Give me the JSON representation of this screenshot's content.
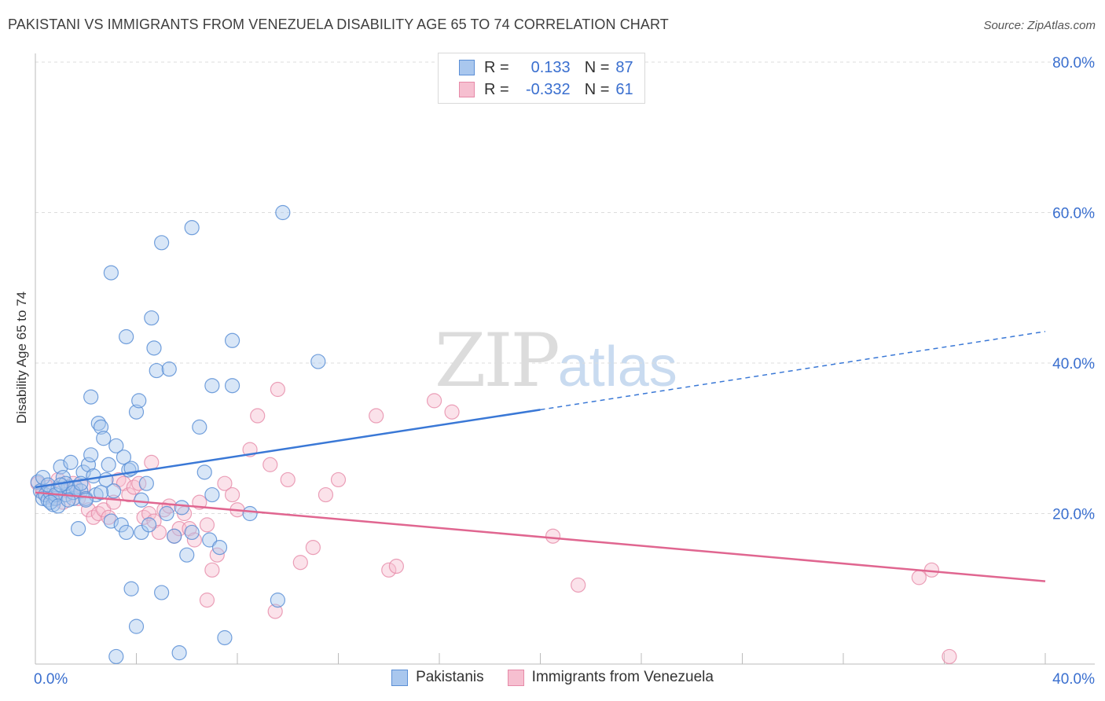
{
  "header": {
    "title": "PAKISTANI VS IMMIGRANTS FROM VENEZUELA DISABILITY AGE 65 TO 74 CORRELATION CHART",
    "source": "Source: ZipAtlas.com"
  },
  "legend": {
    "rows": [
      {
        "r_label": "R =",
        "r_value": "0.133",
        "n_label": "N =",
        "n_value": "87"
      },
      {
        "r_label": "R =",
        "r_value": "-0.332",
        "n_label": "N =",
        "n_value": "61"
      }
    ]
  },
  "watermark": {
    "zip": "ZIP",
    "atlas": "atlas"
  },
  "colors": {
    "blue_fill": "#a9c7ee",
    "blue_stroke": "#5b8fd6",
    "blue_line": "#3a78d6",
    "pink_fill": "#f6bfd0",
    "pink_stroke": "#e68aa8",
    "pink_line": "#e06690",
    "tick_label": "#3a6fcf",
    "grid": "#dddddd"
  },
  "chart_data": {
    "type": "scatter",
    "title": "PAKISTANI VS IMMIGRANTS FROM VENEZUELA DISABILITY AGE 65 TO 74 CORRELATION CHART",
    "xlabel": "",
    "ylabel": "Disability Age 65 to 74",
    "xlim": [
      0,
      40
    ],
    "ylim": [
      0,
      80
    ],
    "x_tick_labels": [
      "0.0%",
      "40.0%"
    ],
    "y_ticks": [
      20,
      40,
      60,
      80
    ],
    "y_tick_labels": [
      "20.0%",
      "40.0%",
      "60.0%",
      "80.0%"
    ],
    "grid": true,
    "legend_position": "top-center",
    "series": [
      {
        "name": "Pakistanis",
        "color": "#a9c7ee",
        "r": 0.133,
        "n": 87,
        "trend": {
          "x0": 0,
          "y0": 23.5,
          "x1": 20,
          "y1": 33.8,
          "dash_x1": 40,
          "dash_y1": 44.2
        },
        "points": [
          [
            0.1,
            24.2
          ],
          [
            0.2,
            23.0
          ],
          [
            0.3,
            22.0
          ],
          [
            0.4,
            22.5
          ],
          [
            0.5,
            21.8
          ],
          [
            0.6,
            22.8
          ],
          [
            0.7,
            21.2
          ],
          [
            0.8,
            22.0
          ],
          [
            0.9,
            23.3
          ],
          [
            1.0,
            26.2
          ],
          [
            1.1,
            24.8
          ],
          [
            1.2,
            22.5
          ],
          [
            1.3,
            23.5
          ],
          [
            1.4,
            26.8
          ],
          [
            1.5,
            22.0
          ],
          [
            1.6,
            23.5
          ],
          [
            1.7,
            18.0
          ],
          [
            1.8,
            23.0
          ],
          [
            1.9,
            25.5
          ],
          [
            2.0,
            22.0
          ],
          [
            2.1,
            26.5
          ],
          [
            2.2,
            27.8
          ],
          [
            2.3,
            25.0
          ],
          [
            2.4,
            22.5
          ],
          [
            2.5,
            32.0
          ],
          [
            2.6,
            31.5
          ],
          [
            2.7,
            30.0
          ],
          [
            2.8,
            24.5
          ],
          [
            2.9,
            26.5
          ],
          [
            3.0,
            19.0
          ],
          [
            3.1,
            23.0
          ],
          [
            3.2,
            29.0
          ],
          [
            3.4,
            18.5
          ],
          [
            3.5,
            27.5
          ],
          [
            3.6,
            17.5
          ],
          [
            3.7,
            25.8
          ],
          [
            3.8,
            10.0
          ],
          [
            4.0,
            33.5
          ],
          [
            4.1,
            35.0
          ],
          [
            4.2,
            17.5
          ],
          [
            3.0,
            52.0
          ],
          [
            3.2,
            1.0
          ],
          [
            3.6,
            43.5
          ],
          [
            3.8,
            26.0
          ],
          [
            4.0,
            5.0
          ],
          [
            4.2,
            21.8
          ],
          [
            4.4,
            24.0
          ],
          [
            4.5,
            18.5
          ],
          [
            4.6,
            46.0
          ],
          [
            4.7,
            42.0
          ],
          [
            4.8,
            39.0
          ],
          [
            5.0,
            9.5
          ],
          [
            5.2,
            20.0
          ],
          [
            5.3,
            39.2
          ],
          [
            5.5,
            17.0
          ],
          [
            5.7,
            1.5
          ],
          [
            5.8,
            20.8
          ],
          [
            6.0,
            14.5
          ],
          [
            6.2,
            17.5
          ],
          [
            6.5,
            31.5
          ],
          [
            6.7,
            25.5
          ],
          [
            6.9,
            16.5
          ],
          [
            7.0,
            22.5
          ],
          [
            7.3,
            15.5
          ],
          [
            7.5,
            3.5
          ],
          [
            7.8,
            37.0
          ],
          [
            7.8,
            43.0
          ],
          [
            8.5,
            20.0
          ],
          [
            9.6,
            8.5
          ],
          [
            11.2,
            40.2
          ],
          [
            6.2,
            58.0
          ],
          [
            5.0,
            56.0
          ],
          [
            9.8,
            60.0
          ],
          [
            2.2,
            35.5
          ],
          [
            7.0,
            37.0
          ],
          [
            1.2,
            24.0
          ],
          [
            1.5,
            22.8
          ],
          [
            0.3,
            24.8
          ],
          [
            0.5,
            23.8
          ],
          [
            0.8,
            22.5
          ],
          [
            1.0,
            23.8
          ],
          [
            1.8,
            24.0
          ],
          [
            2.0,
            21.8
          ],
          [
            2.6,
            22.8
          ],
          [
            0.6,
            21.5
          ],
          [
            0.9,
            21.0
          ],
          [
            1.3,
            21.8
          ]
        ]
      },
      {
        "name": "Immigrants from Venezuela",
        "color": "#f6bfd0",
        "r": -0.332,
        "n": 61,
        "trend": {
          "x0": 0,
          "y0": 22.8,
          "x1": 40,
          "y1": 11.0
        },
        "points": [
          [
            0.1,
            24.0
          ],
          [
            0.3,
            22.8
          ],
          [
            0.5,
            23.5
          ],
          [
            0.7,
            22.0
          ],
          [
            0.9,
            24.5
          ],
          [
            1.1,
            21.5
          ],
          [
            1.3,
            23.0
          ],
          [
            1.5,
            24.0
          ],
          [
            1.7,
            22.0
          ],
          [
            1.9,
            23.5
          ],
          [
            2.1,
            20.5
          ],
          [
            2.3,
            19.5
          ],
          [
            2.5,
            20.0
          ],
          [
            2.7,
            20.5
          ],
          [
            2.9,
            19.5
          ],
          [
            3.1,
            21.5
          ],
          [
            3.3,
            24.5
          ],
          [
            3.5,
            24.0
          ],
          [
            3.7,
            22.5
          ],
          [
            3.9,
            23.5
          ],
          [
            4.1,
            24.0
          ],
          [
            4.3,
            19.5
          ],
          [
            4.5,
            20.0
          ],
          [
            4.7,
            19.0
          ],
          [
            4.9,
            17.5
          ],
          [
            5.1,
            20.5
          ],
          [
            5.3,
            21.0
          ],
          [
            5.5,
            17.0
          ],
          [
            5.7,
            18.0
          ],
          [
            5.9,
            20.0
          ],
          [
            6.1,
            18.0
          ],
          [
            6.3,
            16.5
          ],
          [
            6.5,
            21.5
          ],
          [
            6.8,
            18.5
          ],
          [
            7.0,
            12.5
          ],
          [
            7.2,
            14.5
          ],
          [
            7.5,
            24.0
          ],
          [
            7.8,
            22.5
          ],
          [
            8.0,
            20.5
          ],
          [
            8.5,
            28.5
          ],
          [
            8.8,
            33.0
          ],
          [
            9.3,
            26.5
          ],
          [
            9.6,
            36.5
          ],
          [
            10.0,
            24.5
          ],
          [
            10.5,
            13.5
          ],
          [
            11.0,
            15.5
          ],
          [
            11.5,
            22.5
          ],
          [
            12.0,
            24.5
          ],
          [
            13.5,
            33.0
          ],
          [
            14.0,
            12.5
          ],
          [
            14.3,
            13.0
          ],
          [
            15.8,
            35.0
          ],
          [
            16.5,
            33.5
          ],
          [
            20.5,
            17.0
          ],
          [
            21.5,
            10.5
          ],
          [
            35.0,
            11.5
          ],
          [
            35.5,
            12.5
          ],
          [
            36.2,
            1.0
          ],
          [
            4.6,
            26.8
          ],
          [
            6.8,
            8.5
          ],
          [
            9.5,
            7.0
          ]
        ]
      }
    ]
  }
}
